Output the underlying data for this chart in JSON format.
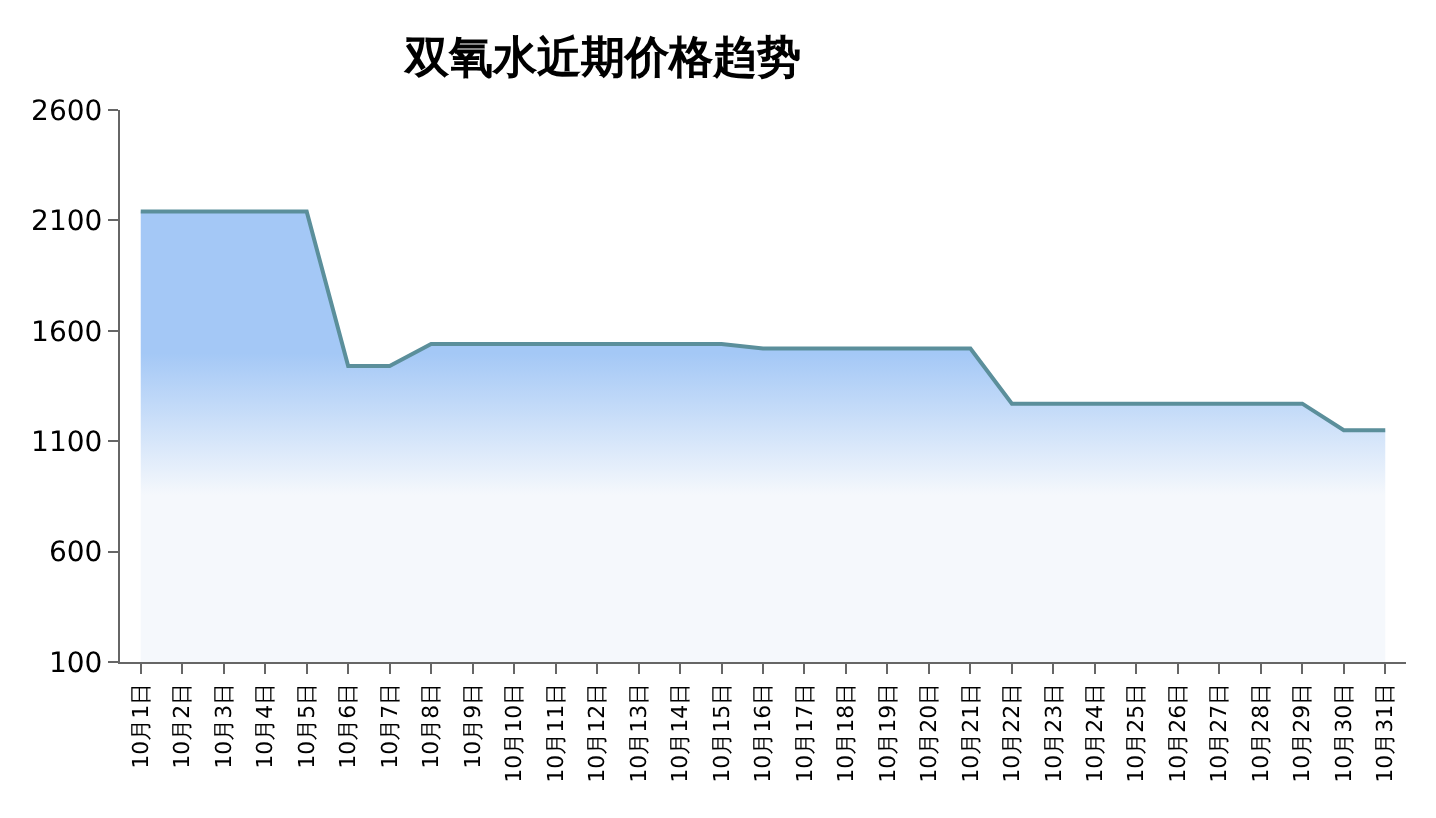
{
  "chart_data": {
    "type": "area",
    "title": "双氧水近期价格趋势",
    "categories": [
      "10月1日",
      "10月2日",
      "10月3日",
      "10月4日",
      "10月5日",
      "10月6日",
      "10月7日",
      "10月8日",
      "10月9日",
      "10月10日",
      "10月11日",
      "10月12日",
      "10月13日",
      "10月14日",
      "10月15日",
      "10月16日",
      "10月17日",
      "10月18日",
      "10月19日",
      "10月20日",
      "10月21日",
      "10月22日",
      "10月23日",
      "10月24日",
      "10月25日",
      "10月26日",
      "10月27日",
      "10月28日",
      "10月29日",
      "10月30日",
      "10月31日"
    ],
    "series": [
      {
        "color": "#a4c8f6",
        "values": [
          2140,
          2140,
          2140,
          2140,
          2140,
          1440,
          1440,
          1540,
          1540,
          1540,
          1540,
          1540,
          1540,
          1540,
          1540,
          1520,
          1520,
          1520,
          1520,
          1520,
          1520,
          1270,
          1270,
          1270,
          1270,
          1270,
          1270,
          1270,
          1270,
          1150,
          1150
        ]
      }
    ],
    "ylim": [
      100,
      2600
    ],
    "yticks": [
      100,
      600,
      1100,
      1600,
      2100,
      2600
    ],
    "legend": false
  }
}
